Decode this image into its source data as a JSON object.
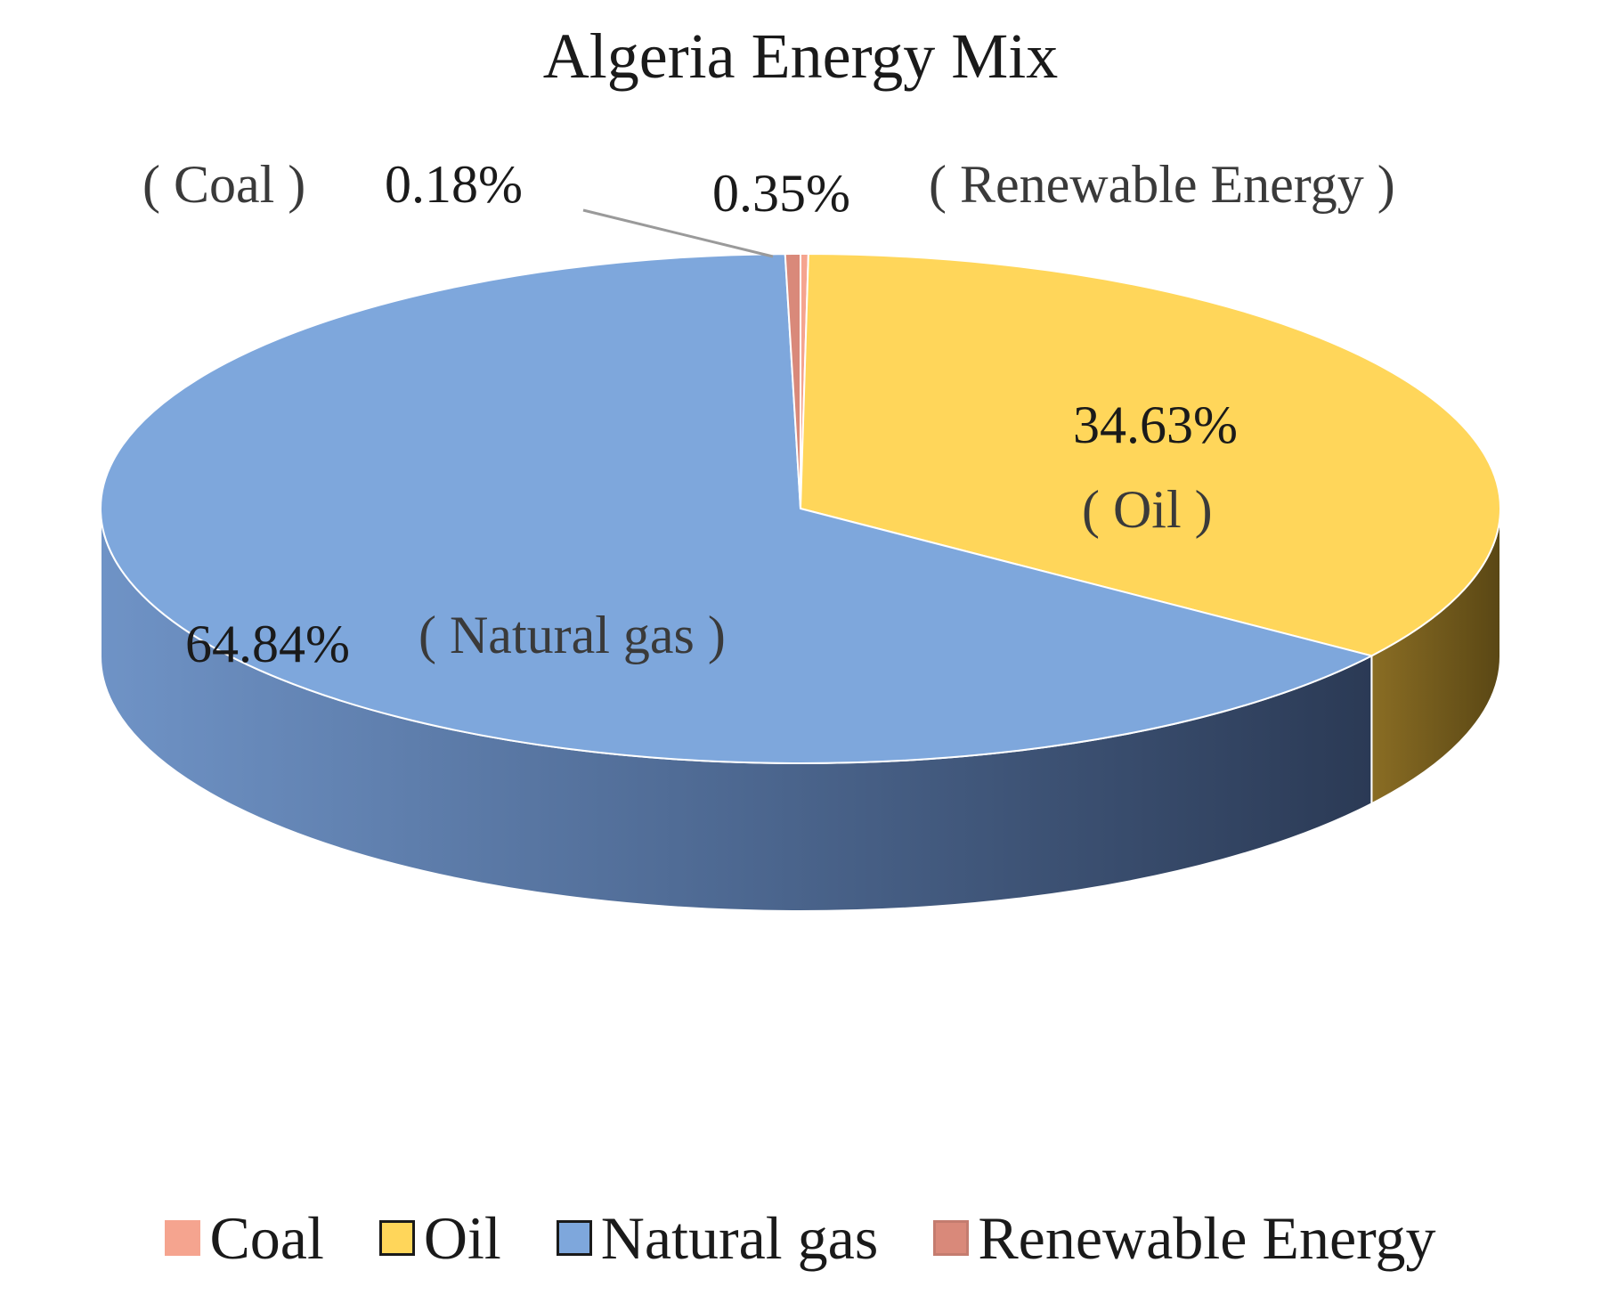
{
  "chart_data": {
    "type": "pie",
    "style": "3d",
    "title": "Algeria  Energy Mix",
    "slices": [
      {
        "name": "Coal",
        "value": 0.18,
        "value_label": "0.18%",
        "category_label": "( Coal )",
        "color": "#f5a48f"
      },
      {
        "name": "Oil",
        "value": 34.63,
        "value_label": "34.63%",
        "category_label": "( Oil )",
        "color": "#ffd65a"
      },
      {
        "name": "Natural gas",
        "value": 64.84,
        "value_label": "64.84%",
        "category_label": "( Natural gas )",
        "color": "#7ea7dc"
      },
      {
        "name": "Renewable Energy",
        "value": 0.35,
        "value_label": "0.35%",
        "category_label": "( Renewable Energy )",
        "color": "#d9897a"
      }
    ],
    "legend_position": "bottom",
    "legend": [
      {
        "label": "Coal",
        "color": "#f5a48f",
        "border": "#f5a48f"
      },
      {
        "label": "Oil",
        "color": "#ffd65a",
        "border": "#1a1a1a"
      },
      {
        "label": "Natural gas",
        "color": "#7ea7dc",
        "border": "#1a1a1a"
      },
      {
        "label": "Renewable Energy",
        "color": "#d9897a",
        "border": "#c47c6f"
      }
    ]
  }
}
